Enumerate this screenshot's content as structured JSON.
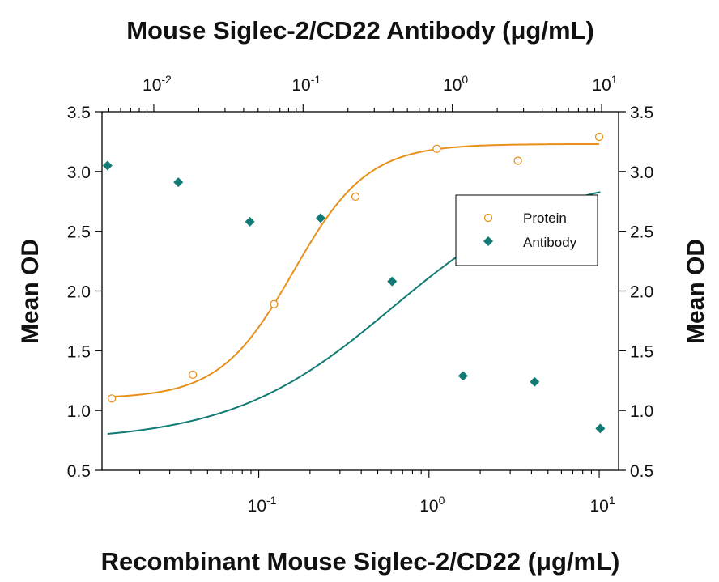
{
  "chart_data": {
    "type": "scatter",
    "title_top": "Mouse Siglec-2/CD22 Antibody (μg/mL)",
    "xlabel": "Recombinant Mouse Siglec-2/CD22 (μg/mL)",
    "ylabel_left": "Mean OD",
    "ylabel_right": "Mean OD",
    "x_scale": "log",
    "x_top_scale": "log",
    "xlim": [
      0.012,
      13
    ],
    "x_top_lim": [
      0.0045,
      13
    ],
    "ylim": [
      0.5,
      3.5
    ],
    "y_ticks": [
      "0.5",
      "1.0",
      "1.5",
      "2.0",
      "2.5",
      "3.0",
      "3.5"
    ],
    "x_ticks": [
      {
        "value": 0.1,
        "base": "10",
        "exp": "-1"
      },
      {
        "value": 1,
        "base": "10",
        "exp": "0"
      },
      {
        "value": 10,
        "base": "10",
        "exp": "1"
      }
    ],
    "x_top_ticks": [
      {
        "value": 0.01,
        "base": "10",
        "exp": "-2"
      },
      {
        "value": 0.1,
        "base": "10",
        "exp": "-1"
      },
      {
        "value": 1,
        "base": "10",
        "exp": "0"
      },
      {
        "value": 10,
        "base": "10",
        "exp": "1"
      }
    ],
    "grid": false,
    "legend_position": "right-middle",
    "series": [
      {
        "name": "Protein",
        "axis": "bottom",
        "marker": "open-circle",
        "color": "#E8901A",
        "x": [
          0.0137,
          0.041,
          0.123,
          0.37,
          1.11,
          3.33,
          10
        ],
        "y": [
          1.1,
          1.3,
          1.89,
          2.79,
          3.19,
          3.09,
          3.29
        ],
        "fit": {
          "bottom": 1.1,
          "top": 3.23,
          "ec50": 0.16,
          "hill": 2.0
        }
      },
      {
        "name": "Antibody",
        "axis": "top",
        "marker": "filled-diamond",
        "color": "#117A74",
        "x": [
          0.0049,
          0.0146,
          0.044,
          0.131,
          0.395,
          1.18,
          3.56,
          9.8
        ],
        "y": [
          3.05,
          2.91,
          2.58,
          2.61,
          2.08,
          1.29,
          1.24,
          0.85
        ],
        "fit": {
          "bottom": 0.74,
          "top": 2.99,
          "ec50": 0.4,
          "hill": 0.8
        }
      }
    ]
  }
}
